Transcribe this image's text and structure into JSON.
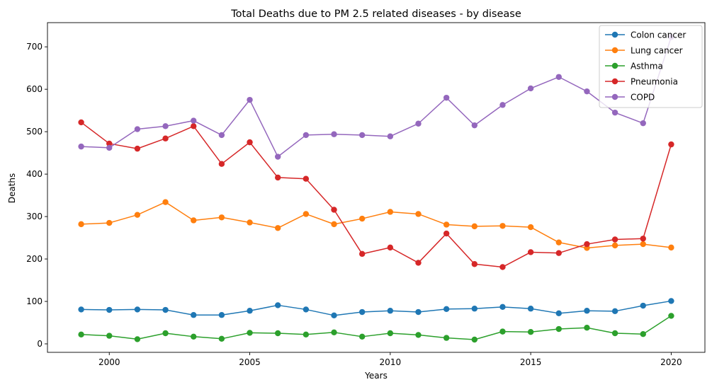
{
  "chart_data": {
    "type": "line",
    "title": "Total Deaths due to PM 2.5 related diseases - by disease",
    "xlabel": "Years",
    "ylabel": "Deaths",
    "xlim": [
      1997.8,
      2021.2
    ],
    "ylim": [
      -20,
      757
    ],
    "xticks": [
      2000,
      2005,
      2010,
      2015,
      2020
    ],
    "yticks": [
      0,
      100,
      200,
      300,
      400,
      500,
      600,
      700
    ],
    "grid": false,
    "legend_position": "top-right",
    "x": [
      1999,
      2000,
      2001,
      2002,
      2003,
      2004,
      2005,
      2006,
      2007,
      2008,
      2009,
      2010,
      2011,
      2012,
      2013,
      2014,
      2015,
      2016,
      2017,
      2018,
      2019,
      2020
    ],
    "series": [
      {
        "name": "Colon cancer",
        "color": "#1f77b4",
        "values": [
          81,
          80,
          81,
          80,
          68,
          68,
          78,
          91,
          81,
          67,
          75,
          78,
          75,
          82,
          83,
          87,
          83,
          72,
          78,
          77,
          90,
          101
        ]
      },
      {
        "name": "Lung cancer",
        "color": "#ff7f0e",
        "values": [
          282,
          285,
          304,
          334,
          291,
          298,
          286,
          273,
          306,
          282,
          295,
          311,
          306,
          281,
          277,
          278,
          275,
          239,
          226,
          232,
          235,
          227
        ]
      },
      {
        "name": "Asthma",
        "color": "#2ca02c",
        "values": [
          22,
          19,
          11,
          25,
          17,
          12,
          26,
          25,
          22,
          27,
          17,
          25,
          21,
          14,
          10,
          29,
          28,
          35,
          38,
          25,
          23,
          66
        ]
      },
      {
        "name": "Pneumonia",
        "color": "#d62728",
        "values": [
          522,
          472,
          460,
          484,
          513,
          424,
          475,
          392,
          389,
          316,
          212,
          227,
          191,
          260,
          188,
          181,
          216,
          214,
          235,
          246,
          248,
          470
        ]
      },
      {
        "name": "COPD",
        "color": "#9467bd",
        "values": [
          465,
          462,
          506,
          513,
          526,
          492,
          575,
          441,
          492,
          494,
          492,
          489,
          519,
          580,
          515,
          563,
          602,
          629,
          595,
          545,
          520,
          723
        ]
      }
    ]
  }
}
